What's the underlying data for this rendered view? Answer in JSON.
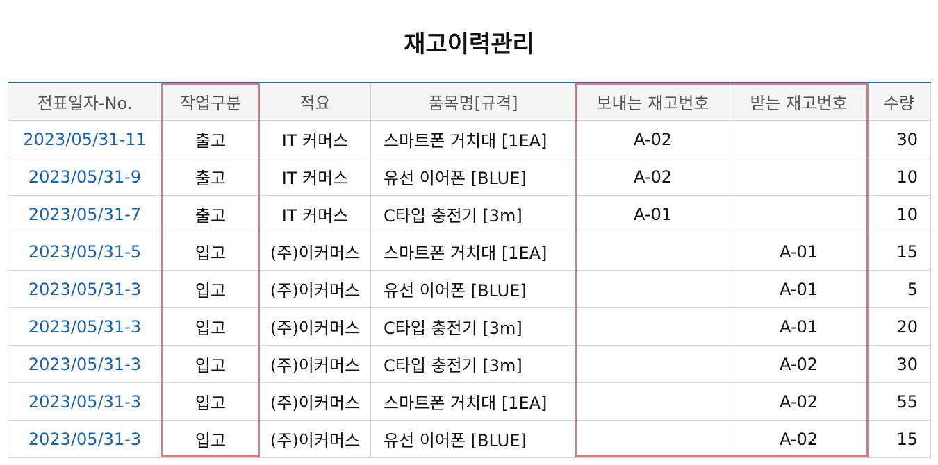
{
  "title": "재고이력관리",
  "columns": [
    "전표일자-No.",
    "작업구분",
    "적요",
    "품목명[규격]",
    "보내는 재고번호",
    "받는 재고번호",
    "수량"
  ],
  "rows": [
    {
      "no": "2023/05/31-11",
      "type": "출고",
      "memo": "IT 커머스",
      "item": "스마트폰 거치대 [1EA]",
      "from": "A-02",
      "to": "",
      "qty": "30"
    },
    {
      "no": "2023/05/31-9",
      "type": "출고",
      "memo": "IT 커머스",
      "item": "유선 이어폰 [BLUE]",
      "from": "A-02",
      "to": "",
      "qty": "10"
    },
    {
      "no": "2023/05/31-7",
      "type": "출고",
      "memo": "IT 커머스",
      "item": "C타입 충전기 [3m]",
      "from": "A-01",
      "to": "",
      "qty": "10"
    },
    {
      "no": "2023/05/31-5",
      "type": "입고",
      "memo": "(주)이커머스",
      "item": "스마트폰 거치대 [1EA]",
      "from": "",
      "to": "A-01",
      "qty": "15"
    },
    {
      "no": "2023/05/31-3",
      "type": "입고",
      "memo": "(주)이커머스",
      "item": "유선 이어폰 [BLUE]",
      "from": "",
      "to": "A-01",
      "qty": "5"
    },
    {
      "no": "2023/05/31-3",
      "type": "입고",
      "memo": "(주)이커머스",
      "item": "C타입 충전기 [3m]",
      "from": "",
      "to": "A-01",
      "qty": "20"
    },
    {
      "no": "2023/05/31-3",
      "type": "입고",
      "memo": "(주)이커머스",
      "item": "C타입 충전기 [3m]",
      "from": "",
      "to": "A-02",
      "qty": "30"
    },
    {
      "no": "2023/05/31-3",
      "type": "입고",
      "memo": "(주)이커머스",
      "item": "스마트폰 거치대 [1EA]",
      "from": "",
      "to": "A-02",
      "qty": "55"
    },
    {
      "no": "2023/05/31-3",
      "type": "입고",
      "memo": "(주)이커머스",
      "item": "유선 이어폰 [BLUE]",
      "from": "",
      "to": "A-02",
      "qty": "15"
    }
  ],
  "colors": {
    "link": "#1a62a8",
    "header_border": "#1a68b0",
    "highlight": "#d87a84"
  }
}
